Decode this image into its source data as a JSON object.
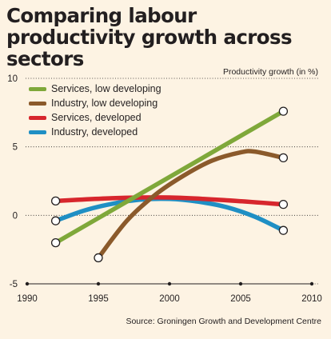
{
  "title": "Comparing labour productivity growth across sectors",
  "source": "Source: Groningen Growth and Development Centre",
  "chart_data": {
    "type": "line",
    "title": "Comparing labour productivity growth across sectors",
    "ylabel": "Productivity growth (in %)",
    "xlabel": "",
    "xlim": [
      1990,
      2010
    ],
    "ylim": [
      -5,
      10
    ],
    "xticks": [
      1990,
      1995,
      2000,
      2005,
      2010
    ],
    "yticks": [
      10,
      5,
      0,
      -5
    ],
    "grid": true,
    "legend": "top-left",
    "series": [
      {
        "name": "Services, low developing",
        "color": "#7fa83a",
        "x": [
          1992,
          2008
        ],
        "y": [
          -2.0,
          7.6
        ]
      },
      {
        "name": "Industry, low developing",
        "color": "#8b5a2b",
        "x": [
          1995,
          1997,
          1999,
          2001,
          2003,
          2005,
          2006,
          2008
        ],
        "y": [
          -3.1,
          -0.4,
          1.5,
          2.9,
          4.0,
          4.6,
          4.65,
          4.2
        ]
      },
      {
        "name": "Services, developed",
        "color": "#d7262d",
        "x": [
          1992,
          1996,
          2000,
          2004,
          2008
        ],
        "y": [
          1.05,
          1.25,
          1.3,
          1.1,
          0.8
        ]
      },
      {
        "name": "Industry, developed",
        "color": "#1f8fc4",
        "x": [
          1992,
          1994,
          1996,
          1998,
          2000,
          2002,
          2004,
          2006,
          2008
        ],
        "y": [
          -0.4,
          0.35,
          0.85,
          1.15,
          1.2,
          1.0,
          0.6,
          -0.1,
          -1.1
        ]
      }
    ]
  }
}
